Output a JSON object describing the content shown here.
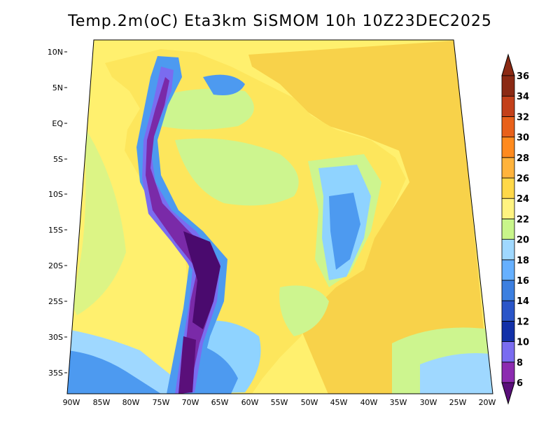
{
  "title": "Temp.2m(oC) Eta3km SiSMOM 10h 10Z23DEC2025",
  "lat_labels": [
    "10N",
    "5N",
    "EQ",
    "5S",
    "10S",
    "15S",
    "20S",
    "25S",
    "30S",
    "35S"
  ],
  "lon_labels": [
    "90W",
    "85W",
    "80W",
    "75W",
    "70W",
    "65W",
    "60W",
    "55W",
    "50W",
    "45W",
    "40W",
    "35W",
    "30W",
    "25W",
    "20W"
  ],
  "colorbar": {
    "labels": [
      "6",
      "8",
      "10",
      "12",
      "14",
      "16",
      "18",
      "20",
      "22",
      "24",
      "26",
      "28",
      "30",
      "32",
      "34",
      "36"
    ],
    "colors": [
      "#5a0f7a",
      "#8c2bb0",
      "#7a6cf0",
      "#1230a8",
      "#2a55c8",
      "#3c7fe0",
      "#66b0ff",
      "#9fd8ff",
      "#c8f58a",
      "#fff380",
      "#ffd848",
      "#ffb33c",
      "#ff8a1e",
      "#e8601a",
      "#c3401a",
      "#8b2a14"
    ]
  },
  "map_colors": {
    "ocean_atlantic": "#f8d24a",
    "ocean_pacific": "#fff06e",
    "land_warm": "#fde65c",
    "land_mild": "#cdf58f",
    "cool": "#8fd3ff",
    "cold": "#4d9af0",
    "andes": "#7a2aa8",
    "andes_high": "#4a0a6e"
  }
}
